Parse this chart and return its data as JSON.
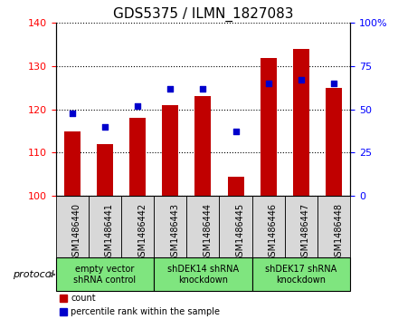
{
  "title": "GDS5375 / ILMN_1827083",
  "samples": [
    "GSM1486440",
    "GSM1486441",
    "GSM1486442",
    "GSM1486443",
    "GSM1486444",
    "GSM1486445",
    "GSM1486446",
    "GSM1486447",
    "GSM1486448"
  ],
  "counts": [
    115.0,
    112.0,
    118.0,
    121.0,
    123.0,
    104.5,
    132.0,
    134.0,
    125.0
  ],
  "percentiles": [
    48,
    40,
    52,
    62,
    62,
    37,
    65,
    67,
    65
  ],
  "ylim_left": [
    100,
    140
  ],
  "ylim_right": [
    0,
    100
  ],
  "yticks_left": [
    100,
    110,
    120,
    130,
    140
  ],
  "yticks_right": [
    0,
    25,
    50,
    75,
    100
  ],
  "bar_color": "#c00000",
  "dot_color": "#0000cc",
  "bar_bottom": 100,
  "group_labels": [
    "empty vector\nshRNA control",
    "shDEK14 shRNA\nknockdown",
    "shDEK17 shRNA\nknockdown"
  ],
  "group_ranges": [
    [
      0,
      2
    ],
    [
      3,
      5
    ],
    [
      6,
      8
    ]
  ],
  "group_color": "#7FE57F",
  "tick_box_color": "#d8d8d8",
  "protocol_label": "protocol",
  "legend_count_label": "count",
  "legend_pct_label": "percentile rank within the sample",
  "title_fontsize": 11,
  "tick_fontsize": 7,
  "label_fontsize": 7
}
